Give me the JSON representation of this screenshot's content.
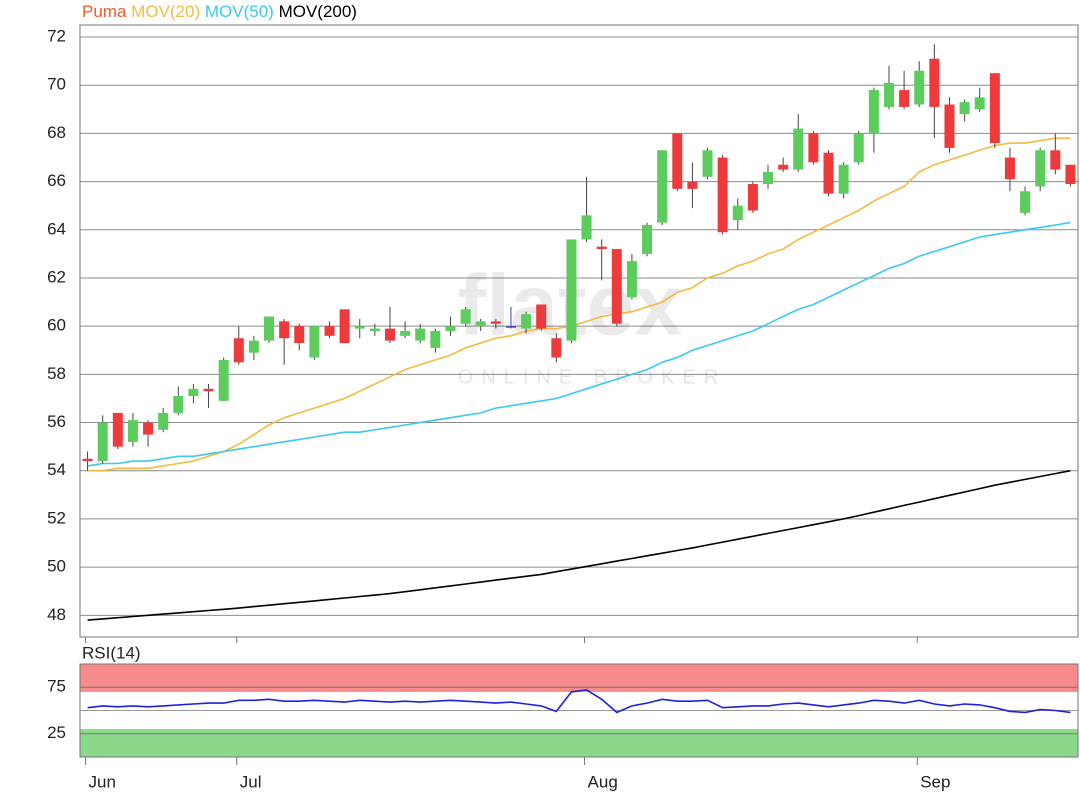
{
  "chart_data": [
    {
      "type": "candlestick",
      "name": "Puma",
      "color": "#f05a28",
      "up_color": "#5ccc5c",
      "down_color": "#ee3a3a",
      "doji_color": "#4040c0",
      "watermark": "flatex",
      "watermark_subtitle": "ONLINE BROKER",
      "categories": [
        "Jun",
        null,
        null,
        null,
        null,
        null,
        null,
        null,
        null,
        null,
        "Jul",
        null,
        null,
        null,
        null,
        null,
        null,
        null,
        null,
        null,
        null,
        null,
        null,
        null,
        null,
        null,
        null,
        null,
        null,
        null,
        null,
        null,
        null,
        "Aug",
        null,
        null,
        null,
        null,
        null,
        null,
        null,
        null,
        null,
        null,
        null,
        null,
        null,
        null,
        null,
        null,
        null,
        null,
        null,
        null,
        null,
        "Sep",
        null,
        null,
        null,
        null,
        null,
        null,
        null,
        null,
        null,
        null
      ],
      "open": [
        54.5,
        54.4,
        56.4,
        55.2,
        56.0,
        55.7,
        56.4,
        57.1,
        57.4,
        56.9,
        59.5,
        58.9,
        59.4,
        60.2,
        60.0,
        58.7,
        60.0,
        60.7,
        59.9,
        59.8,
        59.9,
        59.6,
        59.4,
        59.1,
        59.8,
        60.1,
        60.0,
        60.2,
        60.0,
        59.9,
        60.9,
        59.5,
        59.4,
        63.6,
        63.3,
        63.2,
        61.2,
        63.0,
        64.3,
        68.0,
        66.0,
        66.2,
        67.0,
        64.4,
        65.9,
        65.9,
        66.7,
        66.5,
        68.0,
        67.2,
        65.5,
        66.8,
        68.0,
        69.1,
        69.8,
        69.2,
        71.1,
        69.2,
        68.8,
        69.0,
        70.5,
        67.0,
        64.7,
        65.8,
        67.3,
        66.7
      ],
      "high": [
        54.8,
        56.3,
        56.4,
        56.4,
        56.1,
        56.6,
        57.5,
        57.6,
        57.6,
        58.7,
        60.0,
        59.6,
        60.4,
        60.3,
        60.1,
        60.0,
        60.2,
        60.7,
        60.3,
        60.1,
        60.8,
        60.2,
        60.1,
        59.9,
        60.4,
        60.8,
        60.3,
        60.3,
        60.8,
        60.6,
        60.9,
        59.7,
        63.6,
        66.2,
        63.6,
        63.2,
        63.0,
        64.3,
        67.3,
        68.0,
        66.8,
        67.4,
        67.1,
        65.3,
        66.0,
        66.7,
        67.0,
        68.8,
        68.1,
        67.3,
        66.8,
        68.1,
        69.9,
        70.8,
        70.6,
        71.0,
        71.7,
        69.5,
        69.4,
        69.9,
        70.5,
        67.4,
        65.8,
        67.4,
        68.0,
        66.7
      ],
      "low": [
        54.0,
        54.3,
        54.9,
        55.0,
        55.0,
        55.6,
        56.3,
        56.8,
        56.6,
        56.9,
        58.4,
        58.6,
        59.3,
        58.4,
        59.0,
        58.6,
        59.5,
        59.3,
        59.5,
        59.6,
        59.3,
        59.5,
        59.3,
        58.9,
        59.6,
        60.0,
        59.8,
        59.9,
        59.9,
        59.7,
        59.8,
        58.5,
        59.3,
        63.5,
        61.9,
        60.0,
        61.1,
        62.9,
        64.2,
        65.6,
        64.9,
        66.1,
        63.8,
        64.0,
        64.7,
        65.7,
        66.4,
        66.4,
        66.7,
        65.4,
        65.3,
        66.7,
        67.2,
        69.0,
        69.0,
        69.1,
        67.8,
        67.2,
        68.5,
        68.9,
        67.4,
        65.6,
        64.6,
        65.6,
        66.3,
        65.8
      ],
      "close": [
        54.4,
        56.0,
        55.0,
        56.1,
        55.5,
        56.4,
        57.1,
        57.4,
        57.3,
        58.6,
        58.5,
        59.4,
        60.4,
        59.5,
        59.3,
        60.0,
        59.6,
        59.3,
        60.0,
        59.9,
        59.4,
        59.8,
        59.9,
        59.8,
        60.0,
        60.7,
        60.2,
        60.1,
        60.0,
        60.5,
        59.9,
        58.7,
        63.6,
        64.6,
        63.2,
        60.1,
        62.7,
        64.2,
        67.3,
        65.7,
        65.7,
        67.3,
        63.9,
        65.0,
        64.8,
        66.4,
        66.5,
        68.2,
        66.8,
        65.5,
        66.7,
        68.0,
        69.8,
        70.1,
        69.1,
        70.6,
        69.1,
        67.4,
        69.3,
        69.5,
        67.6,
        66.1,
        65.6,
        67.3,
        66.5,
        65.9
      ],
      "overlays": [
        {
          "name": "MOV(20)",
          "color": "#f5b942",
          "values": [
            54.0,
            54.0,
            54.1,
            54.1,
            54.1,
            54.2,
            54.3,
            54.4,
            54.6,
            54.8,
            55.1,
            55.5,
            55.9,
            56.2,
            56.4,
            56.6,
            56.8,
            57.0,
            57.3,
            57.6,
            57.9,
            58.2,
            58.4,
            58.6,
            58.8,
            59.1,
            59.3,
            59.5,
            59.6,
            59.8,
            59.9,
            59.9,
            60.0,
            60.2,
            60.4,
            60.5,
            60.6,
            60.8,
            61.0,
            61.4,
            61.6,
            62.0,
            62.2,
            62.5,
            62.7,
            63.0,
            63.2,
            63.6,
            63.9,
            64.2,
            64.5,
            64.8,
            65.2,
            65.5,
            65.8,
            66.4,
            66.7,
            66.9,
            67.1,
            67.3,
            67.5,
            67.6,
            67.6,
            67.7,
            67.8,
            67.8
          ]
        },
        {
          "name": "MOV(50)",
          "color": "#3cc8f0",
          "values": [
            54.2,
            54.3,
            54.3,
            54.4,
            54.4,
            54.5,
            54.6,
            54.6,
            54.7,
            54.8,
            54.9,
            55.0,
            55.1,
            55.2,
            55.3,
            55.4,
            55.5,
            55.6,
            55.6,
            55.7,
            55.8,
            55.9,
            56.0,
            56.1,
            56.2,
            56.3,
            56.4,
            56.6,
            56.7,
            56.8,
            56.9,
            57.0,
            57.2,
            57.4,
            57.6,
            57.8,
            58.0,
            58.2,
            58.5,
            58.7,
            59.0,
            59.2,
            59.4,
            59.6,
            59.8,
            60.1,
            60.4,
            60.7,
            60.9,
            61.2,
            61.5,
            61.8,
            62.1,
            62.4,
            62.6,
            62.9,
            63.1,
            63.3,
            63.5,
            63.7,
            63.8,
            63.9,
            64.0,
            64.1,
            64.2,
            64.3
          ]
        },
        {
          "name": "MOV(200)",
          "color": "#000000",
          "values": [
            47.8,
            47.85,
            47.9,
            47.95,
            48.0,
            48.05,
            48.1,
            48.15,
            48.2,
            48.25,
            48.3,
            48.36,
            48.42,
            48.48,
            48.54,
            48.6,
            48.66,
            48.72,
            48.78,
            48.84,
            48.9,
            48.98,
            49.06,
            49.14,
            49.22,
            49.3,
            49.38,
            49.46,
            49.54,
            49.62,
            49.7,
            49.81,
            49.92,
            50.03,
            50.14,
            50.25,
            50.36,
            50.47,
            50.58,
            50.69,
            50.8,
            50.92,
            51.04,
            51.16,
            51.28,
            51.4,
            51.52,
            51.64,
            51.76,
            51.88,
            52.0,
            52.14,
            52.28,
            52.42,
            52.56,
            52.7,
            52.84,
            52.98,
            53.12,
            53.26,
            53.4,
            53.52,
            53.64,
            53.76,
            53.88,
            54.0
          ]
        }
      ],
      "ylim": [
        47.1,
        72.5
      ],
      "yticks": [
        48,
        50,
        52,
        54,
        56,
        58,
        60,
        62,
        64,
        66,
        68,
        70,
        72
      ],
      "grid": true
    },
    {
      "type": "line",
      "series": [
        {
          "name": "RSI(14)",
          "color": "#2020e0",
          "values": [
            53,
            55,
            54,
            55,
            54,
            55,
            56,
            57,
            58,
            58,
            61,
            61,
            62,
            60,
            60,
            61,
            60,
            59,
            61,
            60,
            59,
            60,
            59,
            60,
            61,
            60,
            59,
            58,
            59,
            57,
            55,
            49,
            70,
            72,
            62,
            48,
            55,
            58,
            62,
            60,
            60,
            61,
            53,
            54,
            55,
            55,
            57,
            58,
            56,
            54,
            56,
            58,
            61,
            60,
            58,
            61,
            57,
            55,
            57,
            56,
            53,
            49,
            48,
            51,
            50,
            48
          ]
        }
      ],
      "ylim": [
        0,
        100
      ],
      "yticks": [
        25,
        75
      ],
      "reference_lines": [
        50
      ],
      "bands": [
        {
          "from": 70,
          "to": 100,
          "color": "#f78a8a"
        },
        {
          "from": 0,
          "to": 30,
          "color": "#8ad88a"
        }
      ]
    }
  ]
}
